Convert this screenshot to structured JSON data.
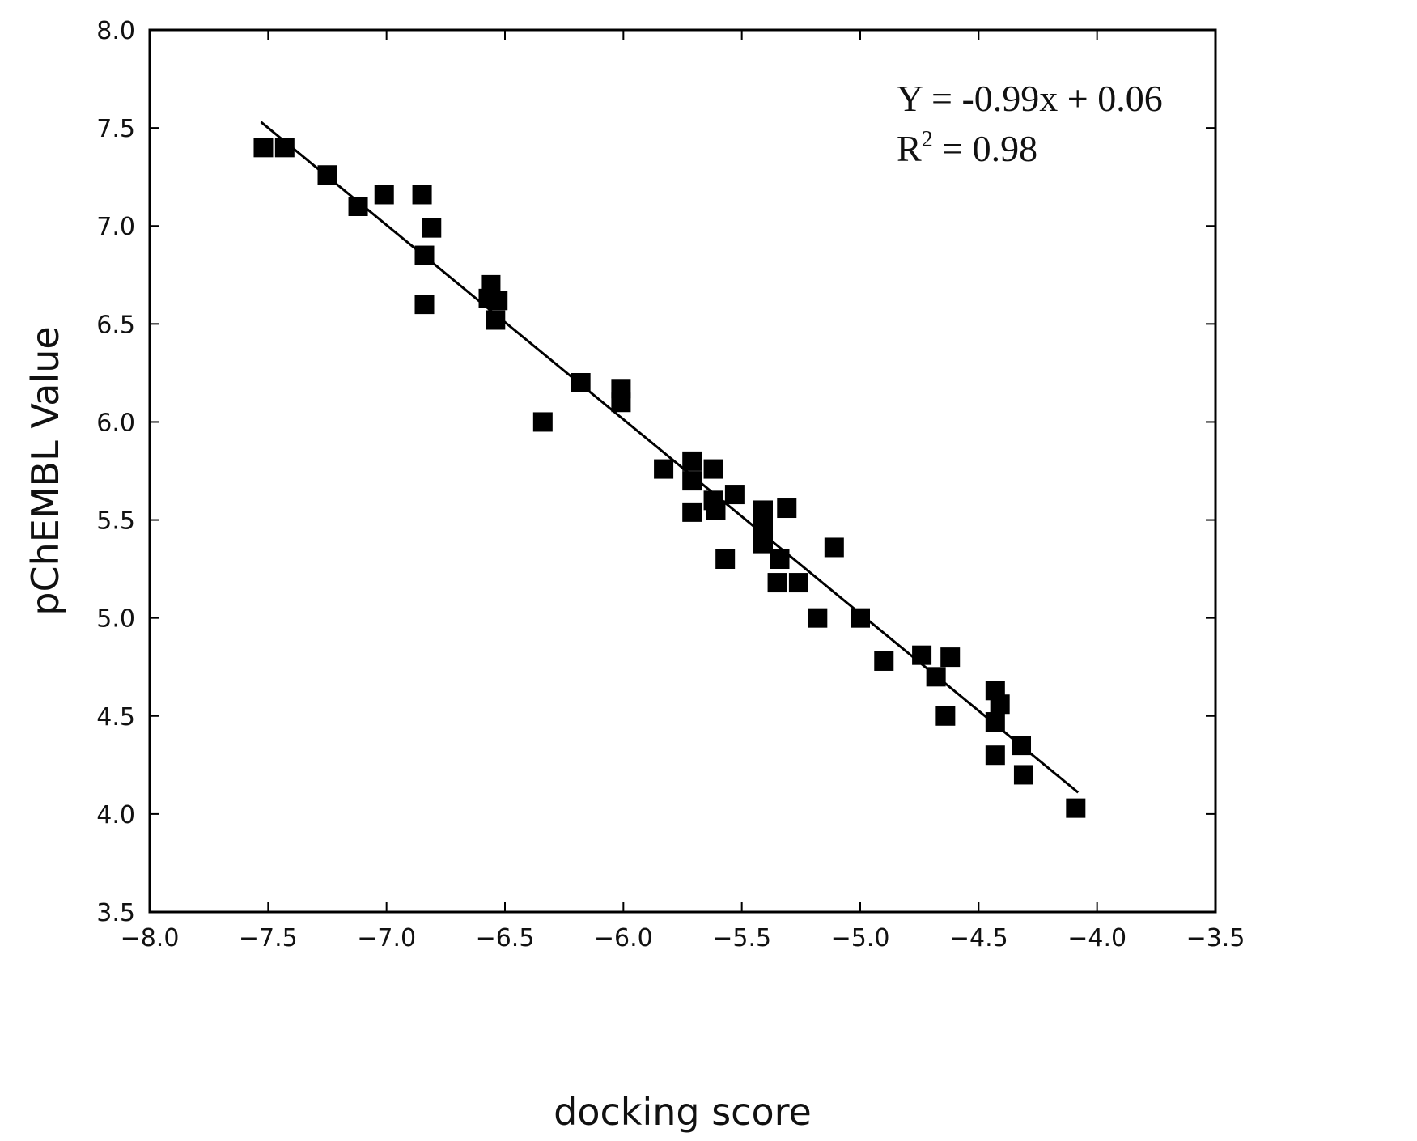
{
  "chart_data": {
    "type": "scatter",
    "title": "",
    "xlabel": "docking score",
    "ylabel": "pChEMBL Value",
    "xlim": [
      -8.0,
      -3.5
    ],
    "ylim": [
      3.5,
      8.0
    ],
    "xticks": [
      -8.0,
      -7.5,
      -7.0,
      -6.5,
      -6.0,
      -5.5,
      -5.0,
      -4.5,
      -4.0,
      -3.5
    ],
    "yticks": [
      3.5,
      4.0,
      4.5,
      5.0,
      5.5,
      6.0,
      6.5,
      7.0,
      7.5,
      8.0
    ],
    "xtick_labels": [
      "−8.0",
      "−7.5",
      "−7.0",
      "−6.5",
      "−6.0",
      "−5.5",
      "−5.0",
      "−4.5",
      "−4.0",
      "−3.5"
    ],
    "ytick_labels": [
      "3.5",
      "4.0",
      "4.5",
      "5.0",
      "5.5",
      "6.0",
      "6.5",
      "7.0",
      "7.5",
      "8.0"
    ],
    "grid": false,
    "marker": "square",
    "marker_color": "#000000",
    "line_color": "#000000",
    "points": [
      [
        -7.52,
        7.4
      ],
      [
        -7.43,
        7.4
      ],
      [
        -7.25,
        7.26
      ],
      [
        -7.12,
        7.1
      ],
      [
        -7.01,
        7.16
      ],
      [
        -6.85,
        7.16
      ],
      [
        -6.81,
        6.99
      ],
      [
        -6.84,
        6.85
      ],
      [
        -6.84,
        6.6
      ],
      [
        -6.56,
        6.7
      ],
      [
        -6.57,
        6.63
      ],
      [
        -6.53,
        6.62
      ],
      [
        -6.54,
        6.52
      ],
      [
        -6.34,
        6.0
      ],
      [
        -6.18,
        6.2
      ],
      [
        -6.01,
        6.17
      ],
      [
        -6.01,
        6.1
      ],
      [
        -5.83,
        5.76
      ],
      [
        -5.71,
        5.8
      ],
      [
        -5.71,
        5.7
      ],
      [
        -5.71,
        5.54
      ],
      [
        -5.62,
        5.76
      ],
      [
        -5.62,
        5.6
      ],
      [
        -5.61,
        5.55
      ],
      [
        -5.53,
        5.63
      ],
      [
        -5.57,
        5.3
      ],
      [
        -5.41,
        5.55
      ],
      [
        -5.41,
        5.45
      ],
      [
        -5.41,
        5.38
      ],
      [
        -5.31,
        5.56
      ],
      [
        -5.34,
        5.3
      ],
      [
        -5.35,
        5.18
      ],
      [
        -5.26,
        5.18
      ],
      [
        -5.11,
        5.36
      ],
      [
        -5.18,
        5.0
      ],
      [
        -5.0,
        5.0
      ],
      [
        -4.9,
        4.78
      ],
      [
        -4.74,
        4.81
      ],
      [
        -4.68,
        4.7
      ],
      [
        -4.62,
        4.8
      ],
      [
        -4.64,
        4.5
      ],
      [
        -4.43,
        4.63
      ],
      [
        -4.41,
        4.56
      ],
      [
        -4.43,
        4.47
      ],
      [
        -4.43,
        4.3
      ],
      [
        -4.32,
        4.35
      ],
      [
        -4.31,
        4.2
      ],
      [
        -4.09,
        4.03
      ]
    ],
    "fit_line": {
      "x": [
        -7.53,
        -4.08
      ],
      "y": [
        7.53,
        4.11
      ]
    },
    "annotations": {
      "equation": "Y = -0.99x + 0.06",
      "r2_prefix": "R",
      "r2_superscript": "2",
      "r2_suffix": " = 0.98"
    }
  }
}
